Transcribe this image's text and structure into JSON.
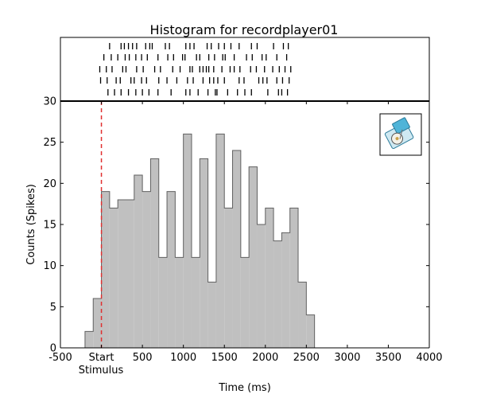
{
  "chart_data": {
    "type": "bar",
    "title": "Histogram for recordplayer01",
    "xlabel": "Time (ms)",
    "ylabel": "Counts (Spikes)",
    "xlim": [
      -500,
      4000
    ],
    "ylim": [
      0,
      30
    ],
    "x_ticks": [
      -500,
      0,
      500,
      1000,
      1500,
      2000,
      2500,
      3000,
      3500,
      4000
    ],
    "x_tick_labels": [
      "-500",
      "Start",
      "500",
      "1000",
      "1500",
      "2000",
      "2500",
      "3000",
      "3500",
      "4000"
    ],
    "x_tick_sublabel": "Stimulus",
    "y_ticks": [
      0,
      5,
      10,
      15,
      20,
      25,
      30
    ],
    "y_tick_labels": [
      "0",
      "5",
      "10",
      "15",
      "20",
      "25",
      "30"
    ],
    "bin_width": 100,
    "bin_starts": [
      -200,
      -100,
      0,
      100,
      200,
      300,
      400,
      500,
      600,
      700,
      800,
      900,
      1000,
      1100,
      1200,
      1300,
      1400,
      1500,
      1600,
      1700,
      1800,
      1900,
      2000,
      2100,
      2200,
      2300,
      2400,
      2500
    ],
    "values": [
      2,
      6,
      19,
      17,
      18,
      18,
      21,
      19,
      23,
      11,
      19,
      11,
      26,
      11,
      23,
      8,
      26,
      17,
      24,
      11,
      22,
      15,
      17,
      13,
      14,
      17,
      8,
      4
    ],
    "stimulus_marker_x": 0,
    "stimulus_marker_color": "#e03030",
    "bar_fill": "#c0c0c0",
    "bar_edge": "#606060",
    "raster_trials": [
      [
        100,
        240,
        280,
        330,
        380,
        430,
        540,
        590,
        620,
        780,
        830,
        1030,
        1080,
        1130,
        1290,
        1340,
        1430,
        1500,
        1580,
        1680,
        1830,
        1900,
        2100,
        2220,
        2280
      ],
      [
        30,
        120,
        200,
        290,
        340,
        420,
        490,
        560,
        690,
        810,
        880,
        990,
        1020,
        1160,
        1200,
        1310,
        1380,
        1480,
        1510,
        1620,
        1770,
        1840,
        1960,
        2010,
        2140,
        2260
      ],
      [
        -20,
        60,
        130,
        260,
        300,
        430,
        510,
        650,
        720,
        870,
        960,
        1080,
        1110,
        1200,
        1240,
        1280,
        1310,
        1370,
        1470,
        1570,
        1620,
        1690,
        1820,
        1890,
        1990,
        2090,
        2170,
        2240,
        2310
      ],
      [
        -10,
        70,
        180,
        230,
        360,
        400,
        490,
        550,
        700,
        800,
        920,
        1050,
        1120,
        1240,
        1320,
        1370,
        1420,
        1500,
        1680,
        1740,
        1920,
        1970,
        2020,
        2140,
        2210,
        2290
      ],
      [
        80,
        160,
        240,
        330,
        420,
        500,
        580,
        690,
        850,
        1030,
        1080,
        1180,
        1300,
        1390,
        1410,
        1540,
        1660,
        1750,
        1830,
        2030,
        2160,
        2200,
        2270
      ]
    ],
    "legend": "none",
    "grid": false
  },
  "icons": {
    "inset": "record-player-icon"
  }
}
